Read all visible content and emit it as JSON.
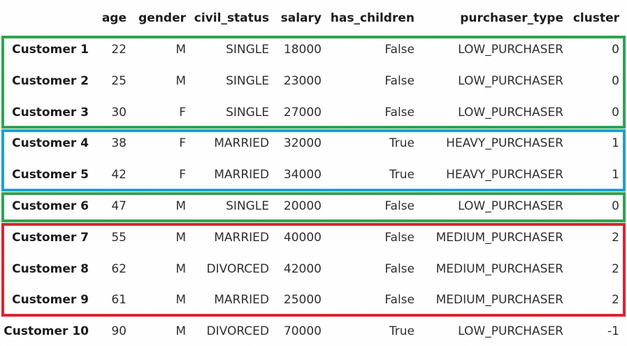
{
  "table": {
    "columns": [
      "age",
      "gender",
      "civil_status",
      "salary",
      "has_children",
      "purchaser_type",
      "cluster"
    ],
    "rows": [
      {
        "label": "Customer 1",
        "values": [
          "22",
          "M",
          "SINGLE",
          "18000",
          "False",
          "LOW_PURCHASER",
          "0"
        ]
      },
      {
        "label": "Customer 2",
        "values": [
          "25",
          "M",
          "SINGLE",
          "23000",
          "False",
          "LOW_PURCHASER",
          "0"
        ]
      },
      {
        "label": "Customer 3",
        "values": [
          "30",
          "F",
          "SINGLE",
          "27000",
          "False",
          "LOW_PURCHASER",
          "0"
        ]
      },
      {
        "label": "Customer 4",
        "values": [
          "38",
          "F",
          "MARRIED",
          "32000",
          "True",
          "HEAVY_PURCHASER",
          "1"
        ]
      },
      {
        "label": "Customer 5",
        "values": [
          "42",
          "F",
          "MARRIED",
          "34000",
          "True",
          "HEAVY_PURCHASER",
          "1"
        ]
      },
      {
        "label": "Customer 6",
        "values": [
          "47",
          "M",
          "SINGLE",
          "20000",
          "False",
          "LOW_PURCHASER",
          "0"
        ]
      },
      {
        "label": "Customer 7",
        "values": [
          "55",
          "M",
          "MARRIED",
          "40000",
          "False",
          "MEDIUM_PURCHASER",
          "2"
        ]
      },
      {
        "label": "Customer 8",
        "values": [
          "62",
          "M",
          "DIVORCED",
          "42000",
          "False",
          "MEDIUM_PURCHASER",
          "2"
        ]
      },
      {
        "label": "Customer 9",
        "values": [
          "61",
          "M",
          "MARRIED",
          "25000",
          "False",
          "MEDIUM_PURCHASER",
          "2"
        ]
      },
      {
        "label": "Customer 10",
        "values": [
          "90",
          "M",
          "DIVORCED",
          "70000",
          "True",
          "LOW_PURCHASER",
          "-1"
        ]
      }
    ]
  },
  "cluster_groups": [
    {
      "cluster": "0",
      "color": "#2ea44f",
      "rows": [
        "Customer 1",
        "Customer 2",
        "Customer 3"
      ]
    },
    {
      "cluster": "1",
      "color": "#1f9fd6",
      "rows": [
        "Customer 4",
        "Customer 5"
      ]
    },
    {
      "cluster": "0",
      "color": "#2ea44f",
      "rows": [
        "Customer 6"
      ]
    },
    {
      "cluster": "2",
      "color": "#d9262c",
      "rows": [
        "Customer 7",
        "Customer 8",
        "Customer 9"
      ]
    }
  ]
}
